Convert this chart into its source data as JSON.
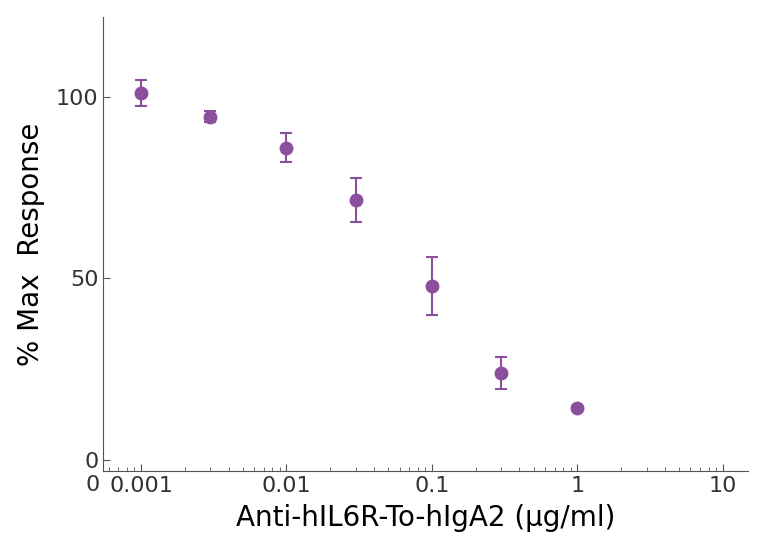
{
  "x": [
    0.001,
    0.003,
    0.01,
    0.03,
    0.1,
    0.3,
    1.0
  ],
  "y": [
    101.0,
    94.5,
    86.0,
    71.5,
    48.0,
    24.0,
    14.5
  ],
  "yerr": [
    3.5,
    1.5,
    4.0,
    6.0,
    8.0,
    4.5,
    0.5
  ],
  "color": "#8B4F9E",
  "marker": "o",
  "markersize": 9,
  "linewidth": 2.0,
  "xlabel": "Anti-hIL6R-To-hIgA2 (μg/ml)",
  "ylabel": "% Max  Response",
  "xlim_min": 0.00055,
  "xlim_max": 15,
  "ylim_min": -3,
  "ylim_max": 122,
  "xtick_major_values": [
    0.001,
    0.01,
    0.1,
    1.0,
    10.0
  ],
  "xtick_major_labels": [
    "0.001",
    "0.01",
    "0.1",
    "1",
    "10"
  ],
  "ytick_values": [
    0,
    50,
    100
  ],
  "xlabel_fontsize": 20,
  "ylabel_fontsize": 20,
  "tick_fontsize": 16,
  "elinewidth": 1.5,
  "capsize": 4,
  "capthick": 1.5,
  "spine_color": "#555555",
  "text_color": "#333333"
}
